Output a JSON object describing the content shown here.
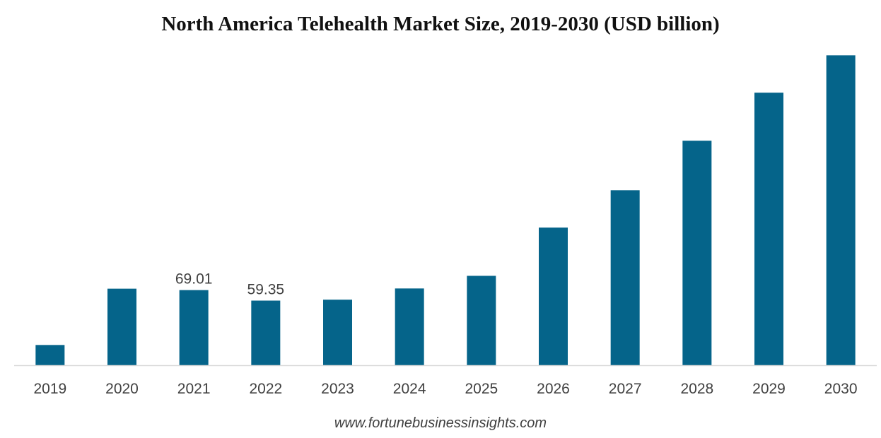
{
  "chart_data": {
    "type": "bar",
    "title": "North America Telehealth Market Size, 2019-2030 (USD billion)",
    "xlabel": "",
    "ylabel": "",
    "categories": [
      "2019",
      "2020",
      "2021",
      "2022",
      "2023",
      "2024",
      "2025",
      "2026",
      "2027",
      "2028",
      "2029",
      "2030"
    ],
    "values": [
      18.6,
      70.3,
      69.01,
      59.35,
      60.2,
      70.5,
      82.1,
      126.4,
      160.7,
      206.2,
      250.3,
      284.6
    ],
    "data_labels": [
      {
        "category": "2021",
        "text": "69.01"
      },
      {
        "category": "2022",
        "text": "59.35"
      }
    ],
    "ylim": [
      0,
      290
    ],
    "grid": false,
    "legend": "none",
    "bar_color": "#05648a",
    "axis_color": "#d9d9d9"
  },
  "footer": {
    "source": "www.fortunebusinessinsights.com"
  }
}
